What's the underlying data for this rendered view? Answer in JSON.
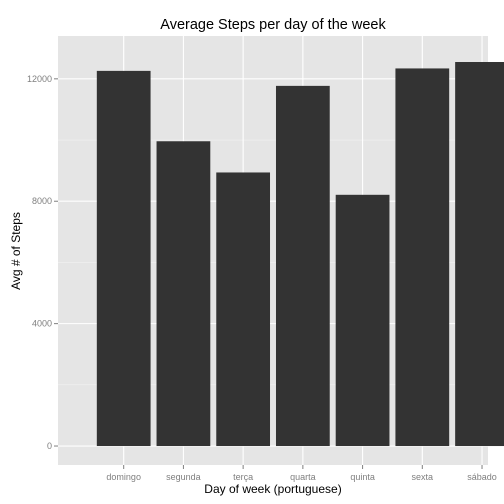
{
  "chart_data": {
    "type": "bar",
    "title": "Average Steps per day of the week",
    "xlabel": "Day of week (portuguese)",
    "ylabel": "Avg # of Steps",
    "categories": [
      "domingo",
      "segunda",
      "terça",
      "quarta",
      "quinta",
      "sexta",
      "sábado"
    ],
    "values": [
      12260,
      9960,
      8940,
      11770,
      8210,
      12340,
      12550
    ],
    "ylim": [
      -620,
      13400
    ],
    "yticks": [
      0,
      4000,
      8000,
      12000
    ],
    "ytick_labels": [
      "0",
      "4000",
      "8000",
      "12000"
    ],
    "grid": true,
    "colors": {
      "bar": "#333333",
      "panel": "#e5e5e5",
      "grid": "#ffffff"
    }
  }
}
